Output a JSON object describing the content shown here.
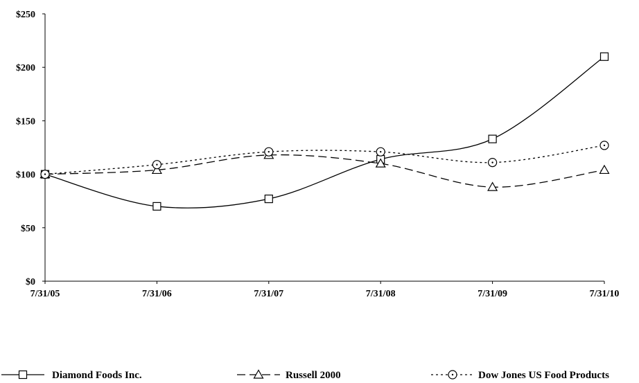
{
  "chart_data": {
    "type": "line",
    "title": "",
    "xlabel": "",
    "ylabel": "",
    "categories": [
      "7/31/05",
      "7/31/06",
      "7/31/07",
      "7/31/08",
      "7/31/09",
      "7/31/10"
    ],
    "y_ticks": [
      "$0",
      "$50",
      "$100",
      "$150",
      "$200",
      "$250"
    ],
    "ylim": [
      0,
      250
    ],
    "grid": false,
    "legend_position": "bottom",
    "series": [
      {
        "name": "Diamond Foods Inc.",
        "values": [
          100,
          70,
          77,
          114,
          133,
          210
        ],
        "line_style": "solid",
        "marker": "square",
        "color": "#000000"
      },
      {
        "name": "Russell 2000",
        "values": [
          100,
          104,
          118,
          110,
          88,
          104
        ],
        "line_style": "dashed",
        "marker": "triangle",
        "color": "#000000"
      },
      {
        "name": "Dow Jones US Food Products",
        "values": [
          100,
          109,
          121,
          121,
          111,
          127
        ],
        "line_style": "dotted",
        "marker": "circle",
        "color": "#000000"
      }
    ]
  }
}
